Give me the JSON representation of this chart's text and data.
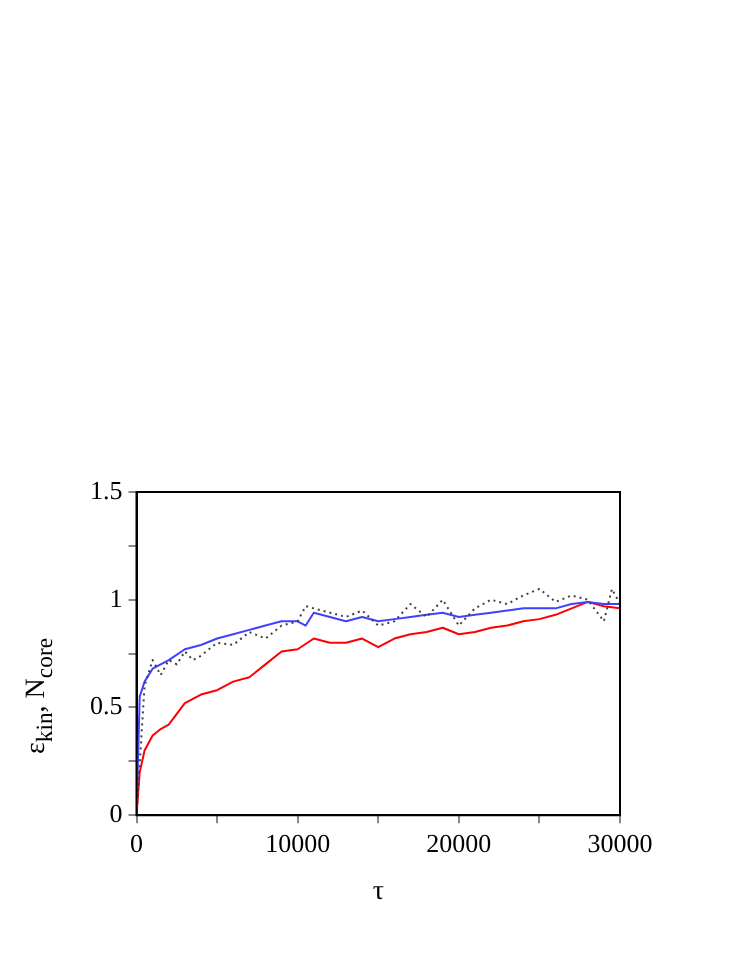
{
  "chart_data": {
    "type": "line",
    "xlabel": "τ",
    "ylabel": "ε$_{kin}$, N$_{core}$",
    "xlim": [
      0,
      30000
    ],
    "xticks": [
      0,
      {
        "value": 5000,
        "label": null
      },
      10000,
      {
        "value": 15000,
        "label": null
      },
      20000,
      {
        "value": 25000,
        "label": null
      },
      30000
    ],
    "ylim": [
      0,
      1.5
    ],
    "yticks": [
      0,
      {
        "value": 0.25,
        "label": null
      },
      0.5,
      {
        "value": 0.75,
        "label": null
      },
      1,
      {
        "value": 1.25,
        "label": null
      },
      1.5
    ],
    "grid": false,
    "legend": false,
    "marker": "none",
    "series": [
      {
        "color": "#404040",
        "line_style": "dotted",
        "x": [
          0,
          500,
          1000,
          1500,
          2000,
          2500,
          3000,
          3500,
          4000,
          5000,
          6000,
          7000,
          8000,
          9000,
          10000,
          10500,
          11000,
          12000,
          13000,
          14000,
          15000,
          16000,
          17000,
          18000,
          19000,
          20000,
          21000,
          22000,
          23000,
          24000,
          25000,
          26000,
          27000,
          28000,
          29000,
          29500,
          30000
        ],
        "values": [
          0,
          0.6,
          0.72,
          0.65,
          0.72,
          0.7,
          0.76,
          0.72,
          0.74,
          0.8,
          0.79,
          0.85,
          0.82,
          0.88,
          0.9,
          0.97,
          0.96,
          0.94,
          0.92,
          0.95,
          0.88,
          0.9,
          0.98,
          0.92,
          1.0,
          0.88,
          0.96,
          1.0,
          0.98,
          1.02,
          1.05,
          0.99,
          1.02,
          1.0,
          0.9,
          1.05,
          0.98
        ]
      },
      {
        "color": "#4040ff",
        "line_style": "solid",
        "x": [
          0,
          200,
          500,
          1000,
          1500,
          2000,
          3000,
          4000,
          5000,
          6000,
          7000,
          8000,
          9000,
          10000,
          10500,
          11000,
          12000,
          13000,
          14000,
          15000,
          16000,
          17000,
          18000,
          19000,
          20000,
          21000,
          22000,
          23000,
          24000,
          25000,
          26000,
          27000,
          28000,
          29000,
          30000
        ],
        "values": [
          0,
          0.55,
          0.62,
          0.68,
          0.7,
          0.72,
          0.77,
          0.79,
          0.82,
          0.84,
          0.86,
          0.88,
          0.9,
          0.9,
          0.88,
          0.94,
          0.92,
          0.9,
          0.92,
          0.9,
          0.91,
          0.92,
          0.93,
          0.94,
          0.92,
          0.93,
          0.94,
          0.95,
          0.96,
          0.96,
          0.96,
          0.98,
          0.99,
          0.98,
          0.98
        ]
      },
      {
        "color": "#ff0000",
        "line_style": "solid",
        "x": [
          0,
          200,
          500,
          1000,
          1500,
          2000,
          3000,
          4000,
          5000,
          6000,
          7000,
          8000,
          9000,
          10000,
          11000,
          12000,
          13000,
          14000,
          15000,
          16000,
          17000,
          18000,
          19000,
          20000,
          21000,
          22000,
          23000,
          24000,
          25000,
          26000,
          27000,
          28000,
          29000,
          30000
        ],
        "values": [
          0,
          0.2,
          0.3,
          0.37,
          0.4,
          0.42,
          0.52,
          0.56,
          0.58,
          0.62,
          0.64,
          0.7,
          0.76,
          0.77,
          0.82,
          0.8,
          0.8,
          0.82,
          0.78,
          0.82,
          0.84,
          0.85,
          0.87,
          0.84,
          0.85,
          0.87,
          0.88,
          0.9,
          0.91,
          0.93,
          0.96,
          0.99,
          0.97,
          0.96
        ]
      }
    ]
  }
}
